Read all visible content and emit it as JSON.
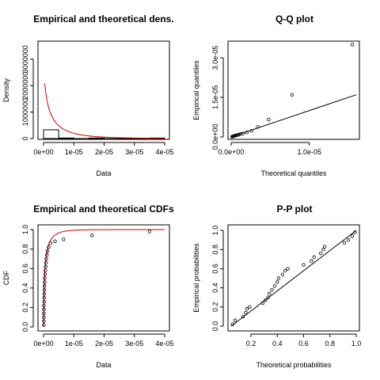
{
  "chart_data": [
    {
      "type": "histogram",
      "title": "Empirical and theoretical dens.",
      "xlabel": "Data",
      "ylabel": "Density",
      "xlim": [
        0,
        4e-05
      ],
      "ylim": [
        0,
        3500000
      ],
      "xticks": [
        "0e+00",
        "1e-05",
        "2e-05",
        "3e-05",
        "4e-05"
      ],
      "yticks": [
        "0",
        "1000000",
        "2000000",
        "3000000"
      ],
      "bins": [
        {
          "x0": 0,
          "x1": 5e-06,
          "density": 330000
        },
        {
          "x0": 5e-06,
          "x1": 1e-05,
          "density": 20000
        },
        {
          "x0": 1e-05,
          "x1": 1.5e-05,
          "density": 0
        },
        {
          "x0": 1.5e-05,
          "x1": 2e-05,
          "density": 20000
        },
        {
          "x0": 2e-05,
          "x1": 2.5e-05,
          "density": 0
        },
        {
          "x0": 2.5e-05,
          "x1": 3e-05,
          "density": 0
        },
        {
          "x0": 3e-05,
          "x1": 3.5e-05,
          "density": 0
        },
        {
          "x0": 3.5e-05,
          "x1": 4e-05,
          "density": 20000
        }
      ],
      "curve_color": "#cc0000"
    },
    {
      "type": "scatter",
      "title": "Q-Q plot",
      "xlabel": "Theoretical quantiles",
      "ylabel": "Empirical quantiles",
      "xlim": [
        0,
        1.6e-05
      ],
      "ylim": [
        0,
        3.6e-05
      ],
      "xticks": [
        "0.0e+00",
        "1.0e-05"
      ],
      "yticks": [
        "0.0e+00",
        "1.5e-05",
        "3.0e-05"
      ],
      "points": [
        [
          1e-07,
          1e-07
        ],
        [
          2e-07,
          2e-07
        ],
        [
          3e-07,
          3e-07
        ],
        [
          4e-07,
          4e-07
        ],
        [
          5e-07,
          5e-07
        ],
        [
          6e-07,
          6e-07
        ],
        [
          8e-07,
          7e-07
        ],
        [
          1e-06,
          9e-07
        ],
        [
          1.2e-06,
          1.1e-06
        ],
        [
          1.5e-06,
          1.3e-06
        ],
        [
          2e-06,
          1.7e-06
        ],
        [
          2.6e-06,
          2.3e-06
        ],
        [
          3.4e-06,
          3.8e-06
        ],
        [
          4.8e-06,
          6.6e-06
        ],
        [
          7.8e-06,
          1.6e-05
        ],
        [
          1.55e-05,
          3.5e-05
        ]
      ],
      "line": [
        [
          0,
          0
        ],
        [
          1.6e-05,
          1.6e-05
        ]
      ]
    },
    {
      "type": "line",
      "title": "Empirical and theoretical CDFs",
      "xlabel": "Data",
      "ylabel": "CDF",
      "xlim": [
        0,
        4e-05
      ],
      "ylim": [
        0,
        1
      ],
      "xticks": [
        "0e+00",
        "1e-05",
        "2e-05",
        "3e-05",
        "4e-05"
      ],
      "yticks": [
        "0.0",
        "0.2",
        "0.4",
        "0.6",
        "0.8",
        "1.0"
      ],
      "points": [
        [
          1e-07,
          0.02
        ],
        [
          1e-07,
          0.06
        ],
        [
          1e-07,
          0.1
        ],
        [
          1e-07,
          0.14
        ],
        [
          1e-07,
          0.18
        ],
        [
          1e-07,
          0.22
        ],
        [
          2e-07,
          0.26
        ],
        [
          2e-07,
          0.3
        ],
        [
          2e-07,
          0.34
        ],
        [
          3e-07,
          0.38
        ],
        [
          3e-07,
          0.42
        ],
        [
          4e-07,
          0.46
        ],
        [
          4e-07,
          0.5
        ],
        [
          5e-07,
          0.54
        ],
        [
          6e-07,
          0.58
        ],
        [
          7e-07,
          0.62
        ],
        [
          8e-07,
          0.66
        ],
        [
          9e-07,
          0.7
        ],
        [
          1.1e-06,
          0.74
        ],
        [
          1.3e-06,
          0.78
        ],
        [
          1.7e-06,
          0.82
        ],
        [
          2.3e-06,
          0.86
        ],
        [
          3.8e-06,
          0.88
        ],
        [
          6.6e-06,
          0.9
        ],
        [
          1.6e-05,
          0.94
        ],
        [
          3.5e-05,
          0.98
        ]
      ],
      "curve_color": "#cc0000"
    },
    {
      "type": "scatter",
      "title": "P-P plot",
      "xlabel": "Theoretical probabilities",
      "ylabel": "Empirical probabilities",
      "xlim": [
        0.05,
        1
      ],
      "ylim": [
        0,
        1
      ],
      "xticks": [
        "0.2",
        "0.4",
        "0.6",
        "0.8",
        "1.0"
      ],
      "yticks": [
        "0.0",
        "0.2",
        "0.4",
        "0.6",
        "0.8",
        "1.0"
      ],
      "points": [
        [
          0.06,
          0.02
        ],
        [
          0.08,
          0.06
        ],
        [
          0.14,
          0.1
        ],
        [
          0.16,
          0.14
        ],
        [
          0.17,
          0.18
        ],
        [
          0.19,
          0.2
        ],
        [
          0.29,
          0.24
        ],
        [
          0.31,
          0.27
        ],
        [
          0.33,
          0.3
        ],
        [
          0.34,
          0.34
        ],
        [
          0.36,
          0.38
        ],
        [
          0.38,
          0.42
        ],
        [
          0.4,
          0.46
        ],
        [
          0.41,
          0.5
        ],
        [
          0.44,
          0.54
        ],
        [
          0.46,
          0.58
        ],
        [
          0.48,
          0.6
        ],
        [
          0.6,
          0.64
        ],
        [
          0.66,
          0.68
        ],
        [
          0.68,
          0.72
        ],
        [
          0.73,
          0.76
        ],
        [
          0.75,
          0.8
        ],
        [
          0.76,
          0.83
        ],
        [
          0.91,
          0.87
        ],
        [
          0.94,
          0.9
        ],
        [
          0.97,
          0.94
        ],
        [
          0.99,
          0.98
        ]
      ],
      "line": [
        [
          0,
          0
        ],
        [
          1,
          1
        ]
      ]
    }
  ]
}
